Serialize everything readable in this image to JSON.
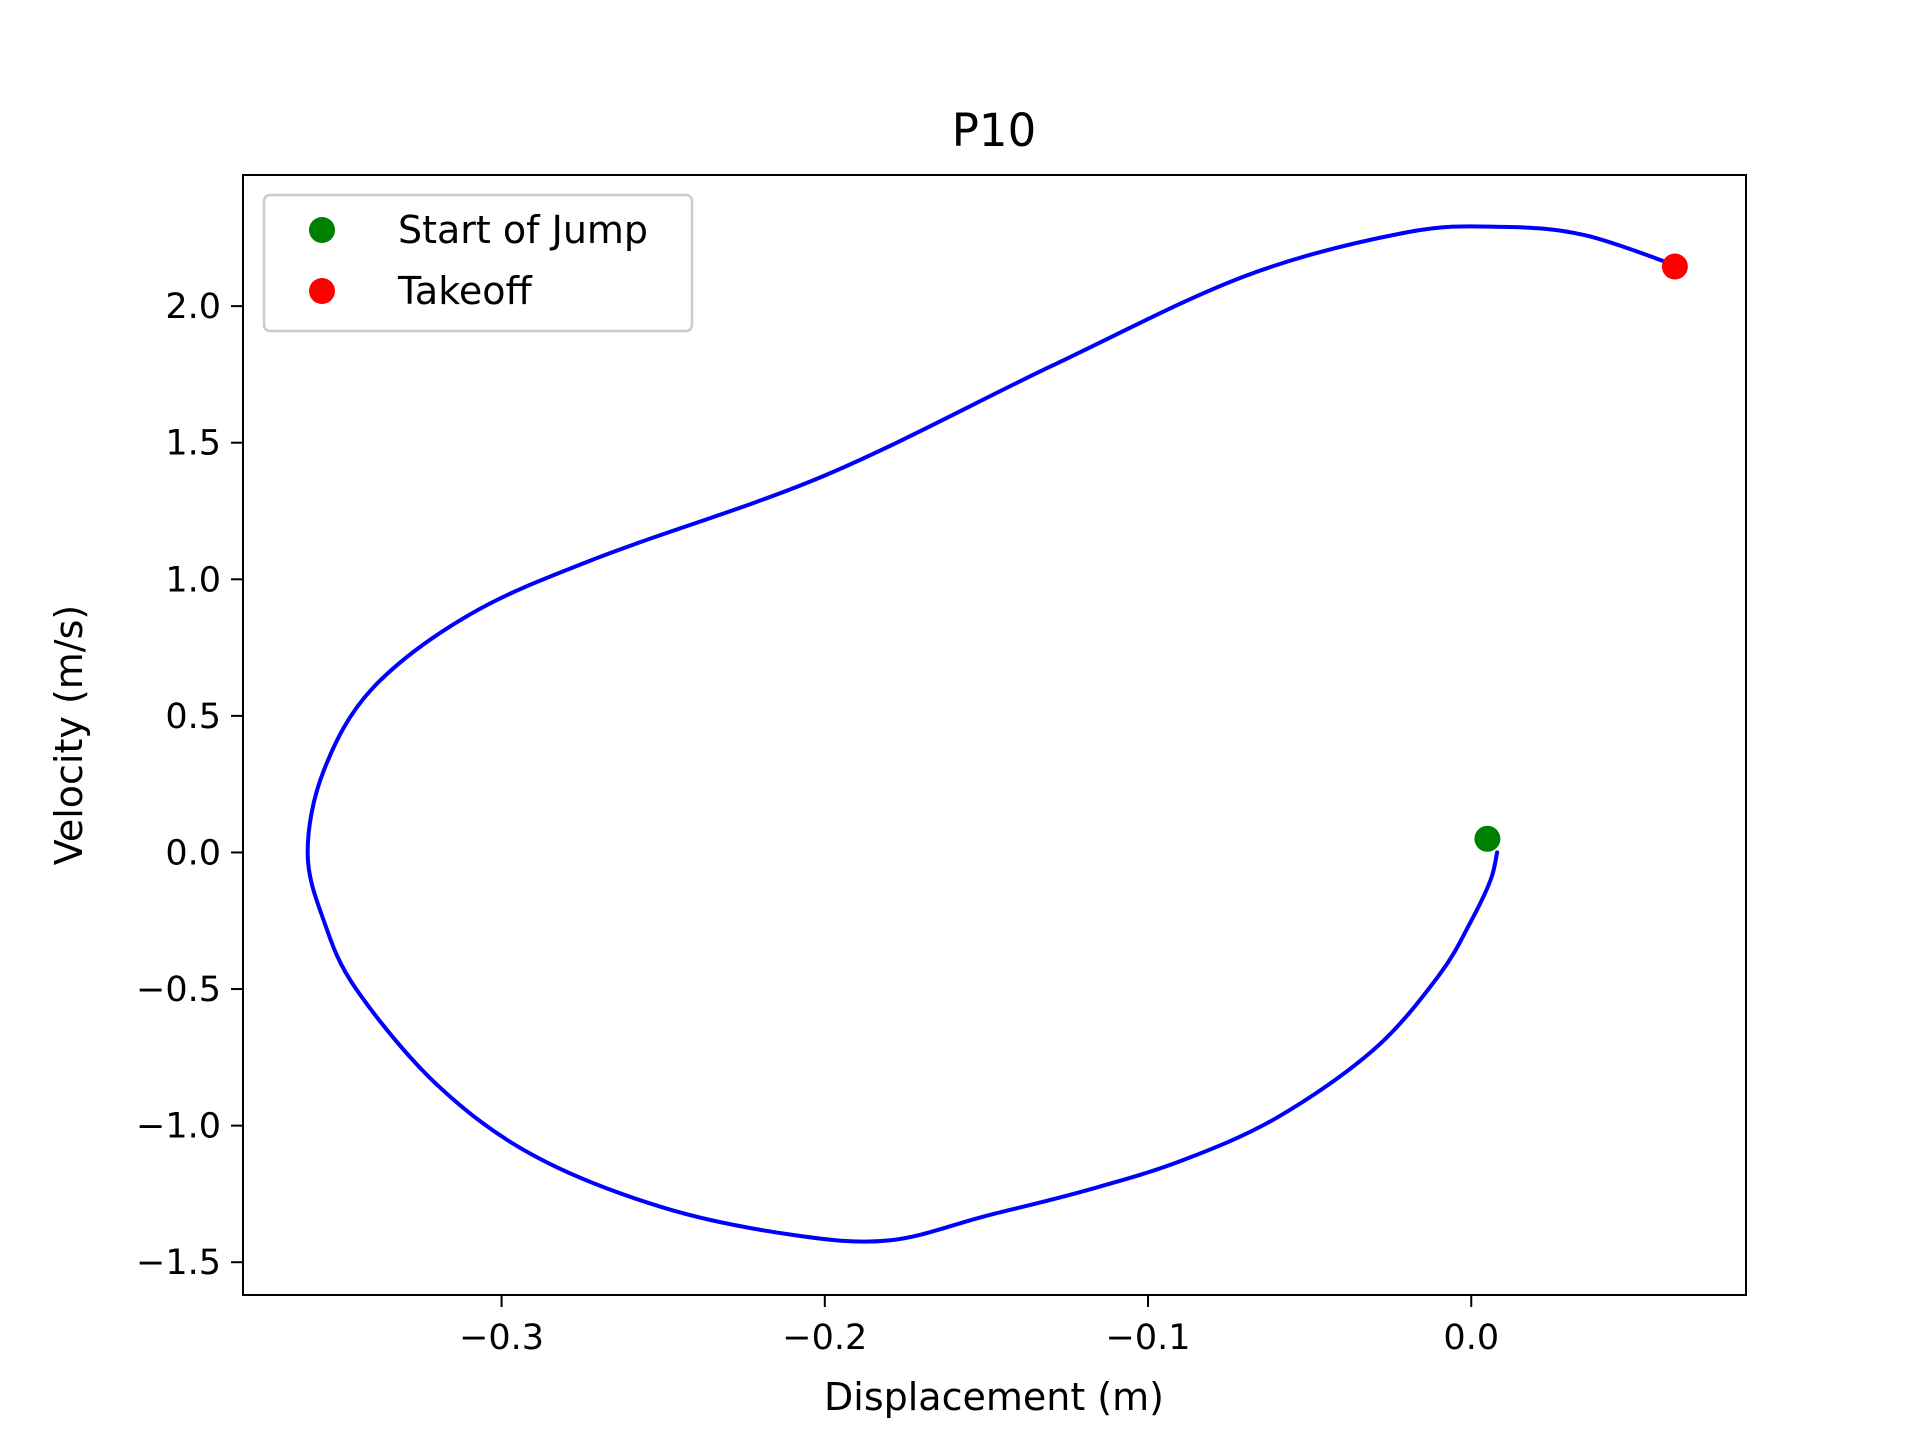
{
  "chart_data": {
    "type": "line",
    "title": "P10",
    "xlabel": "Displacement (m)",
    "ylabel": "Velocity (m/s)",
    "xlim": [
      -0.38,
      0.085
    ],
    "ylim": [
      -1.62,
      2.48
    ],
    "xticks": [
      -0.3,
      -0.2,
      -0.1,
      0.0
    ],
    "xtick_labels": [
      "−0.3",
      "−0.2",
      "−0.1",
      "0.0"
    ],
    "yticks": [
      -1.5,
      -1.0,
      -0.5,
      0.0,
      0.5,
      1.0,
      1.5,
      2.0
    ],
    "ytick_labels": [
      "−1.5",
      "−1.0",
      "−0.5",
      "0.0",
      "0.5",
      "1.0",
      "1.5",
      "2.0"
    ],
    "grid": false,
    "legend_position": "top-left",
    "series": [
      {
        "color": "#0000ff",
        "x": [
          0.008,
          0.006,
          0.0,
          -0.01,
          -0.03,
          -0.06,
          -0.09,
          -0.12,
          -0.15,
          -0.18,
          -0.21,
          -0.25,
          -0.29,
          -0.32,
          -0.345,
          -0.355,
          -0.36,
          -0.355,
          -0.34,
          -0.31,
          -0.27,
          -0.2,
          -0.13,
          -0.07,
          -0.02,
          0.01,
          0.035,
          0.063
        ],
        "y": [
          0.0,
          -0.1,
          -0.25,
          -0.45,
          -0.72,
          -0.97,
          -1.13,
          -1.24,
          -1.33,
          -1.42,
          -1.4,
          -1.3,
          -1.11,
          -0.85,
          -0.5,
          -0.25,
          0.0,
          0.3,
          0.6,
          0.87,
          1.08,
          1.38,
          1.78,
          2.11,
          2.27,
          2.29,
          2.26,
          2.15
        ]
      }
    ],
    "markers": [
      {
        "name": "Start of Jump",
        "x": 0.005,
        "y": 0.05,
        "color": "#008000"
      },
      {
        "name": "Takeoff",
        "x": 0.063,
        "y": 2.145,
        "color": "#ff0000"
      }
    ]
  }
}
